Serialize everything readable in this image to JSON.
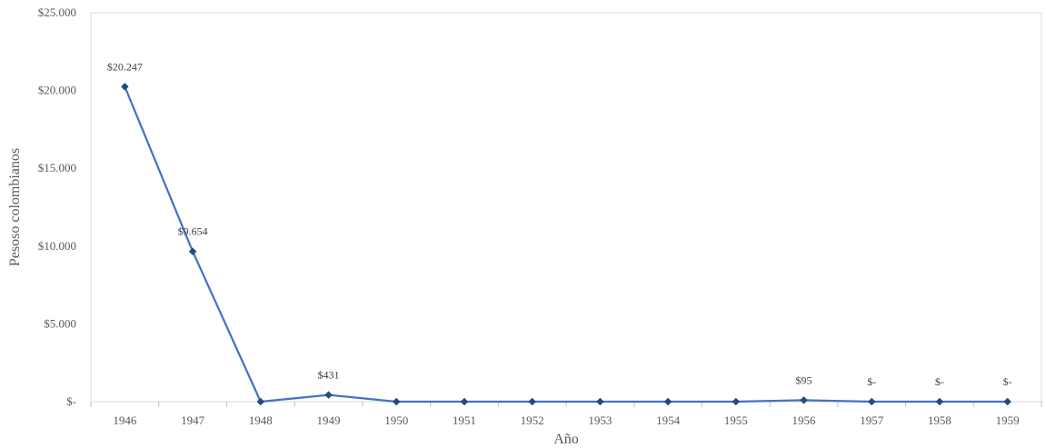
{
  "chart_data": {
    "type": "line",
    "title": "",
    "xlabel": "Año",
    "ylabel": "Pesoso colombianos",
    "categories": [
      "1946",
      "1947",
      "1948",
      "1949",
      "1950",
      "1951",
      "1952",
      "1953",
      "1954",
      "1955",
      "1956",
      "1957",
      "1958",
      "1959"
    ],
    "series": [
      {
        "values": [
          20247,
          9654,
          0,
          431,
          0,
          0,
          0,
          0,
          0,
          0,
          95,
          0,
          0,
          0
        ],
        "color": "#4472C4",
        "marker_color": "#1F4E79"
      }
    ],
    "data_labels": [
      {
        "category": "1946",
        "text": "$20.247"
      },
      {
        "category": "1947",
        "text": "$9.654"
      },
      {
        "category": "1949",
        "text": "$431"
      },
      {
        "category": "1956",
        "text": "$95"
      },
      {
        "category": "1957",
        "text": "$-"
      },
      {
        "category": "1958",
        "text": "$-"
      },
      {
        "category": "1959",
        "text": "$-"
      }
    ],
    "ylim": [
      0,
      25000
    ],
    "yticks": [
      {
        "value": 0,
        "label": "$-"
      },
      {
        "value": 5000,
        "label": "$5.000"
      },
      {
        "value": 10000,
        "label": "$10.000"
      },
      {
        "value": 15000,
        "label": "$15.000"
      },
      {
        "value": 20000,
        "label": "$20.000"
      },
      {
        "value": 25000,
        "label": "$25.000"
      }
    ],
    "grid": false,
    "legend": "none"
  }
}
